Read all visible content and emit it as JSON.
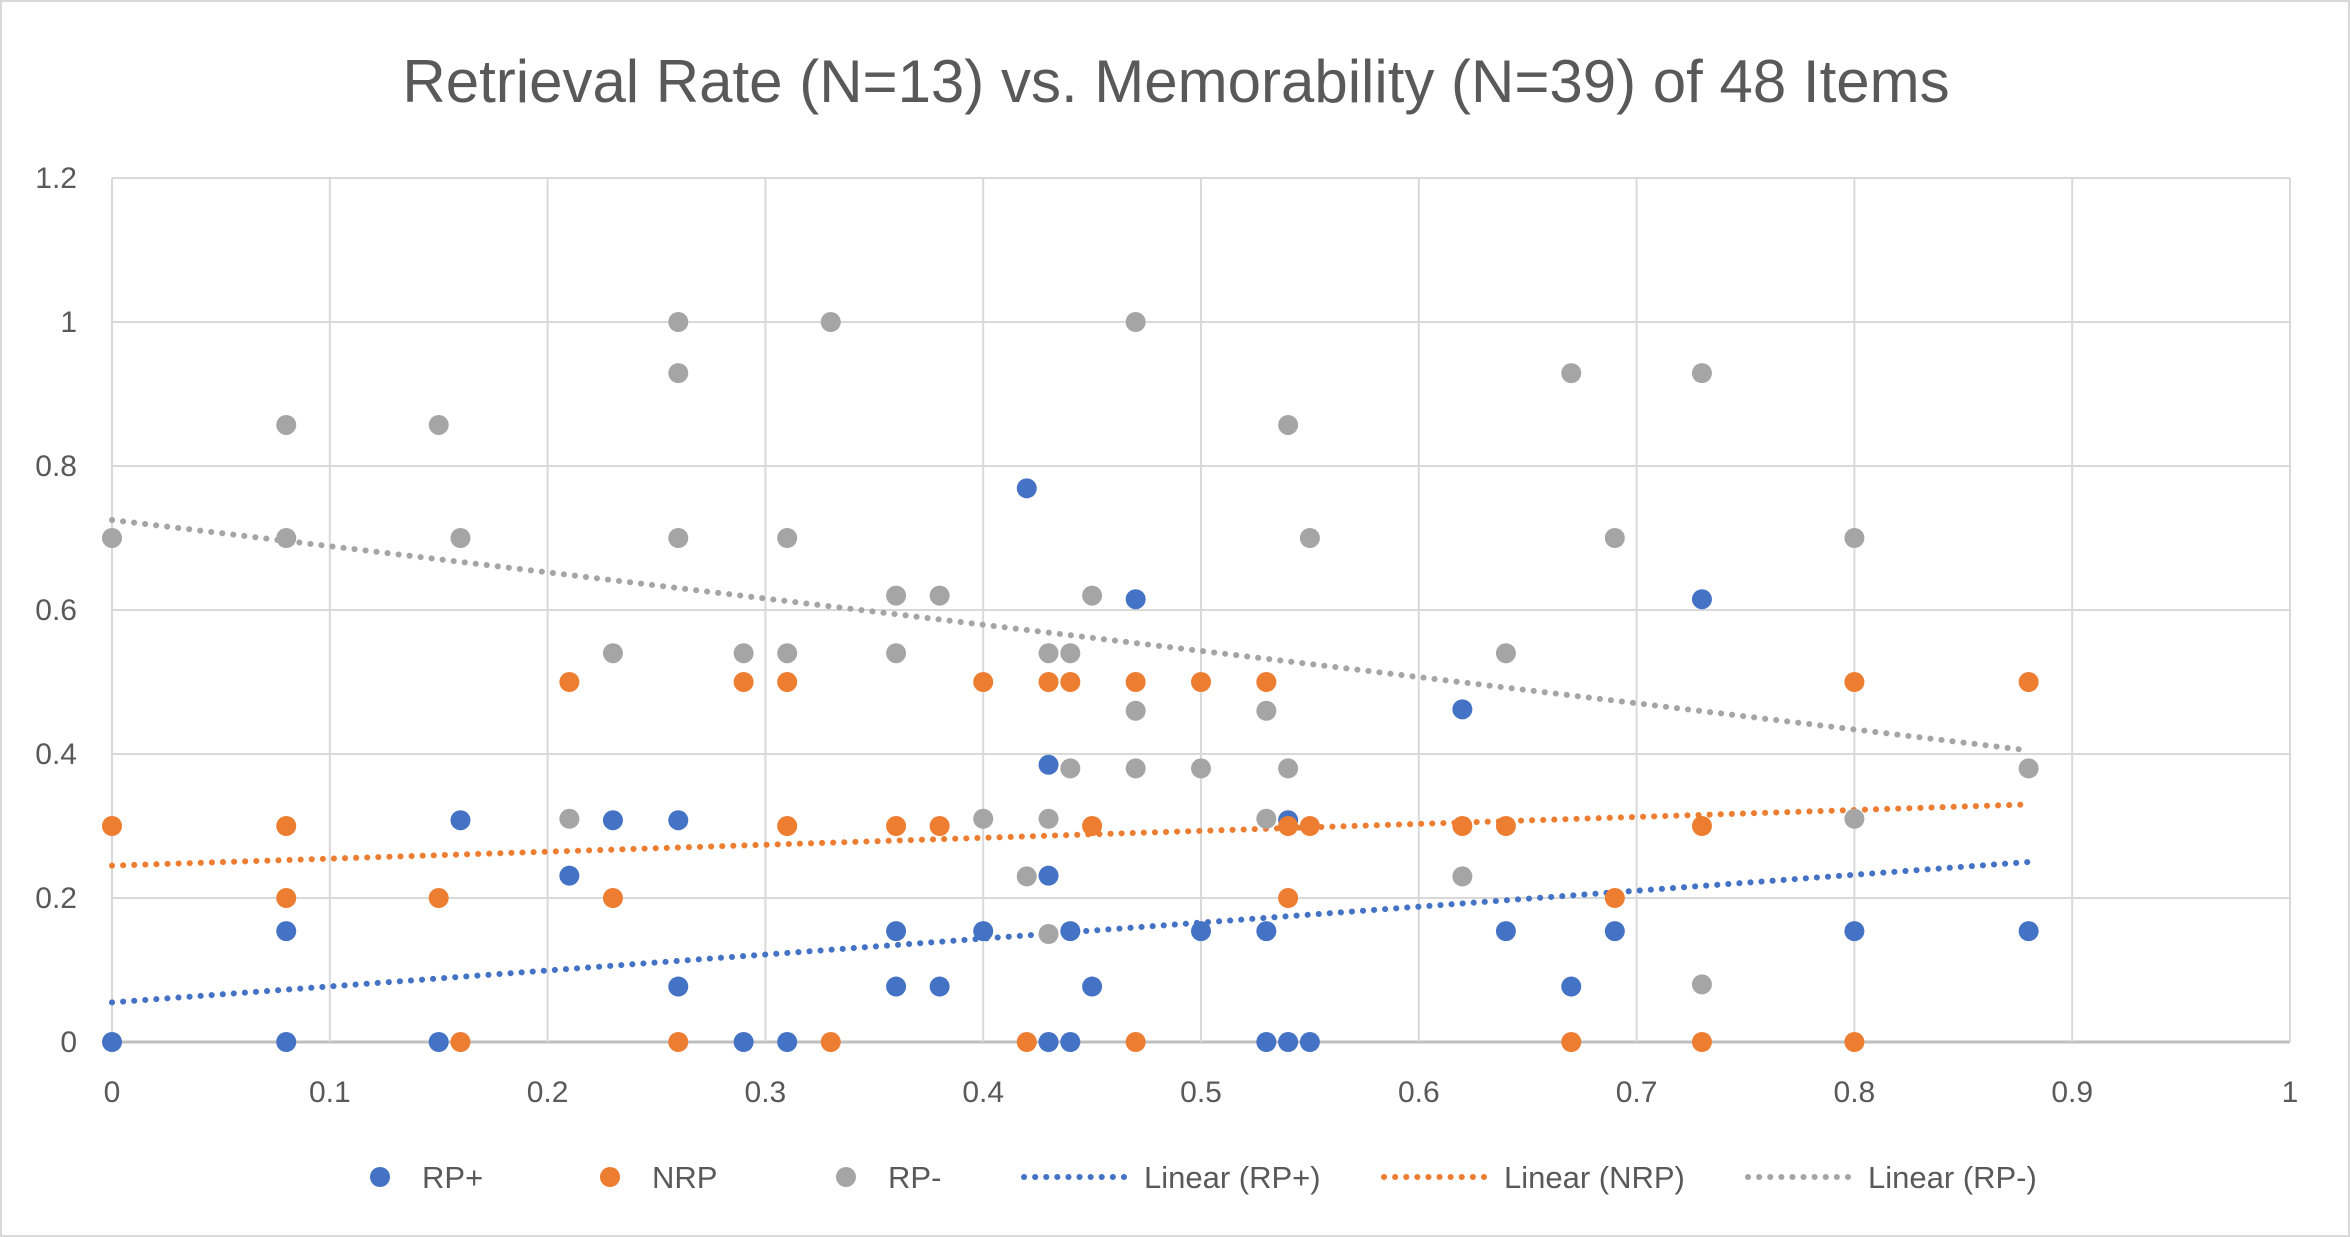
{
  "chart_data": {
    "type": "scatter",
    "title": "Retrieval Rate (N=13) vs. Memorability (N=39) of 48 Items",
    "xlabel": "",
    "ylabel": "",
    "xlim": [
      0,
      1
    ],
    "ylim": [
      0,
      1.2
    ],
    "x_ticks": [
      "0",
      "0.1",
      "0.2",
      "0.3",
      "0.4",
      "0.5",
      "0.6",
      "0.7",
      "0.8",
      "0.9",
      "1"
    ],
    "y_ticks": [
      "0",
      "0.2",
      "0.4",
      "0.6",
      "0.8",
      "1",
      "1.2"
    ],
    "grid": true,
    "legend_position": "bottom",
    "series": [
      {
        "name": "RP+",
        "color": "#4472c4",
        "points": [
          [
            0,
            0
          ],
          [
            0.08,
            0.154
          ],
          [
            0.08,
            0
          ],
          [
            0.15,
            0
          ],
          [
            0.16,
            0.308
          ],
          [
            0.21,
            0.231
          ],
          [
            0.23,
            0.308
          ],
          [
            0.26,
            0.308
          ],
          [
            0.26,
            0.077
          ],
          [
            0.29,
            0
          ],
          [
            0.31,
            0
          ],
          [
            0.36,
            0.154
          ],
          [
            0.36,
            0.077
          ],
          [
            0.38,
            0.077
          ],
          [
            0.4,
            0.154
          ],
          [
            0.42,
            0.769
          ],
          [
            0.43,
            0.385
          ],
          [
            0.43,
            0.231
          ],
          [
            0.43,
            0
          ],
          [
            0.44,
            0.154
          ],
          [
            0.44,
            0
          ],
          [
            0.45,
            0.077
          ],
          [
            0.47,
            0.615
          ],
          [
            0.5,
            0.154
          ],
          [
            0.53,
            0.154
          ],
          [
            0.53,
            0
          ],
          [
            0.54,
            0.308
          ],
          [
            0.54,
            0
          ],
          [
            0.55,
            0
          ],
          [
            0.62,
            0.462
          ],
          [
            0.64,
            0.154
          ],
          [
            0.67,
            0.077
          ],
          [
            0.69,
            0.154
          ],
          [
            0.73,
            0.615
          ],
          [
            0.8,
            0.154
          ],
          [
            0.88,
            0.154
          ]
        ]
      },
      {
        "name": "NRP",
        "color": "#ed7d31",
        "points": [
          [
            0,
            0.3
          ],
          [
            0.08,
            0.3
          ],
          [
            0.08,
            0.2
          ],
          [
            0.15,
            0.2
          ],
          [
            0.16,
            0
          ],
          [
            0.21,
            0.5
          ],
          [
            0.23,
            0.2
          ],
          [
            0.26,
            0
          ],
          [
            0.29,
            0.5
          ],
          [
            0.31,
            0.5
          ],
          [
            0.31,
            0.3
          ],
          [
            0.33,
            0
          ],
          [
            0.36,
            0.3
          ],
          [
            0.38,
            0.3
          ],
          [
            0.4,
            0.5
          ],
          [
            0.42,
            0
          ],
          [
            0.43,
            0.5
          ],
          [
            0.44,
            0.5
          ],
          [
            0.45,
            0.3
          ],
          [
            0.47,
            0.5
          ],
          [
            0.47,
            0
          ],
          [
            0.5,
            0.5
          ],
          [
            0.53,
            0.5
          ],
          [
            0.54,
            0.3
          ],
          [
            0.54,
            0.2
          ],
          [
            0.55,
            0.3
          ],
          [
            0.62,
            0.3
          ],
          [
            0.64,
            0.3
          ],
          [
            0.67,
            0
          ],
          [
            0.69,
            0.2
          ],
          [
            0.73,
            0.3
          ],
          [
            0.73,
            0
          ],
          [
            0.8,
            0.5
          ],
          [
            0.8,
            0
          ],
          [
            0.88,
            0.5
          ]
        ]
      },
      {
        "name": "RP-",
        "color": "#a5a5a5",
        "points": [
          [
            0,
            0.7
          ],
          [
            0.08,
            0.857
          ],
          [
            0.08,
            0.7
          ],
          [
            0.15,
            0.857
          ],
          [
            0.16,
            0.7
          ],
          [
            0.21,
            0.31
          ],
          [
            0.23,
            0.54
          ],
          [
            0.26,
            1.0
          ],
          [
            0.26,
            0.929
          ],
          [
            0.26,
            0.7
          ],
          [
            0.29,
            0.54
          ],
          [
            0.31,
            0.7
          ],
          [
            0.31,
            0.54
          ],
          [
            0.33,
            1.0
          ],
          [
            0.36,
            0.62
          ],
          [
            0.36,
            0.54
          ],
          [
            0.38,
            0.62
          ],
          [
            0.4,
            0.31
          ],
          [
            0.42,
            0.23
          ],
          [
            0.43,
            0.54
          ],
          [
            0.43,
            0.31
          ],
          [
            0.43,
            0.15
          ],
          [
            0.44,
            0.54
          ],
          [
            0.44,
            0.38
          ],
          [
            0.45,
            0.62
          ],
          [
            0.47,
            1.0
          ],
          [
            0.47,
            0.46
          ],
          [
            0.47,
            0.38
          ],
          [
            0.5,
            0.38
          ],
          [
            0.53,
            0.46
          ],
          [
            0.53,
            0.31
          ],
          [
            0.54,
            0.857
          ],
          [
            0.54,
            0.38
          ],
          [
            0.55,
            0.7
          ],
          [
            0.62,
            0.23
          ],
          [
            0.64,
            0.54
          ],
          [
            0.67,
            0.929
          ],
          [
            0.69,
            0.7
          ],
          [
            0.73,
            0.929
          ],
          [
            0.73,
            0.08
          ],
          [
            0.8,
            0.7
          ],
          [
            0.8,
            0.31
          ],
          [
            0.88,
            0.38
          ]
        ]
      }
    ],
    "trendlines": [
      {
        "name": "Linear (RP+)",
        "color": "#4472c4",
        "x": [
          0,
          0.88
        ],
        "y": [
          0.055,
          0.25
        ]
      },
      {
        "name": "Linear (NRP)",
        "color": "#ed7d31",
        "x": [
          0,
          0.88
        ],
        "y": [
          0.245,
          0.33
        ]
      },
      {
        "name": "Linear (RP-)",
        "color": "#a5a5a5",
        "x": [
          0,
          0.88
        ],
        "y": [
          0.725,
          0.405
        ]
      }
    ]
  }
}
